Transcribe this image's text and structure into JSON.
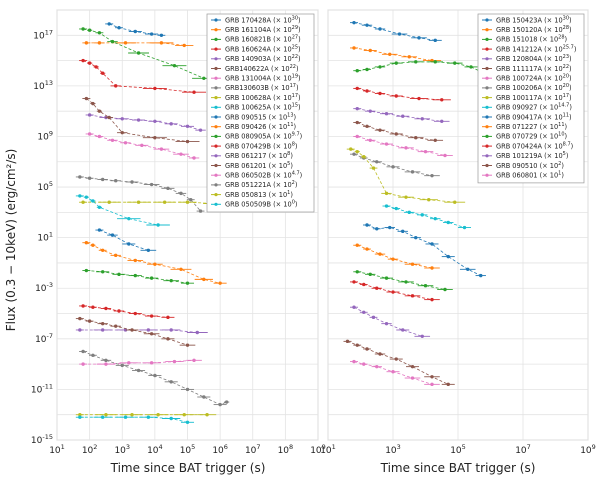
{
  "chart_data": [
    {
      "type": "scatter",
      "panel": "left",
      "xlabel": "Time since BAT trigger (s)",
      "ylabel": "Flux (0.3 − 10keV) (erg/cm²/s)",
      "xscale": "log",
      "yscale": "log",
      "xlim": [
        10,
        1000000000.0
      ],
      "ylim": [
        1e-15,
        1e+19
      ],
      "x_ticks": [
        "10^1",
        "10^2",
        "10^3",
        "10^4",
        "10^5",
        "10^6",
        "10^7",
        "10^8",
        "10^9"
      ],
      "y_ticks": [
        "10^-15",
        "10^-11",
        "10^-7",
        "10^-3",
        "10^1",
        "10^5",
        "10^9",
        "10^13",
        "10^17"
      ],
      "grid": true,
      "legend_position": "top-right",
      "series": [
        {
          "name": "GRB 170428A (× 10^30)",
          "color": "#1f77b4",
          "log_x": [
            2.6,
            2.9,
            3.4,
            3.9,
            4.2
          ],
          "log_y": [
            17.9,
            17.6,
            17.3,
            17.1,
            17.0
          ]
        },
        {
          "name": "GRB 161104A (× 10^29)",
          "color": "#ff7f0e",
          "log_x": [
            1.9,
            2.3,
            3.1,
            4.2,
            4.9
          ],
          "log_y": [
            16.4,
            16.4,
            16.4,
            16.4,
            16.2
          ]
        },
        {
          "name": "GRB 160821B (× 10^27)",
          "color": "#2ca02c",
          "log_x": [
            1.8,
            2.0,
            2.3,
            2.7,
            3.5,
            4.6,
            5.5,
            6.2
          ],
          "log_y": [
            17.5,
            17.4,
            17.2,
            16.5,
            15.6,
            14.6,
            13.6,
            13.5
          ]
        },
        {
          "name": "GRB 160624A (× 10^25)",
          "color": "#d62728",
          "log_x": [
            1.8,
            2.0,
            2.2,
            2.4,
            2.8,
            4.0,
            5.2
          ],
          "log_y": [
            15.0,
            14.8,
            14.5,
            14.0,
            13.0,
            12.8,
            12.5
          ]
        },
        {
          "name": "GRB 140903A (× 10^22)",
          "color": "#9467bd",
          "log_x": [
            2.0,
            2.5,
            3.0,
            3.5,
            4.0,
            4.5,
            5.0,
            5.4
          ],
          "log_y": [
            10.7,
            10.5,
            10.4,
            10.3,
            10.2,
            10.0,
            9.8,
            9.5
          ]
        },
        {
          "name": "GRB140622A (× 10^22)",
          "color": "#8c564b",
          "log_x": [
            1.9,
            2.1,
            2.3,
            2.6,
            3.0,
            4.0,
            5.0
          ],
          "log_y": [
            12.0,
            11.6,
            11.0,
            10.5,
            9.3,
            8.9,
            8.6
          ]
        },
        {
          "name": "GRB 131004A (× 10^19)",
          "color": "#e377c2",
          "log_x": [
            2.0,
            2.3,
            2.7,
            3.1,
            3.6,
            4.2,
            4.8,
            5.2
          ],
          "log_y": [
            9.2,
            9.0,
            8.7,
            8.5,
            8.3,
            8.0,
            7.6,
            7.3
          ]
        },
        {
          "name": "GRB130603B (× 10^17)",
          "color": "#7f7f7f",
          "log_x": [
            1.7,
            2.0,
            2.4,
            2.8,
            3.3,
            3.9,
            4.4,
            4.8,
            5.1,
            5.4
          ],
          "log_y": [
            5.8,
            5.7,
            5.6,
            5.5,
            5.4,
            5.2,
            4.9,
            4.5,
            4.0,
            3.1
          ]
        },
        {
          "name": "GRB 100628A (× 10^17)",
          "color": "#bcbd22",
          "log_x": [
            1.8,
            2.6,
            3.5,
            4.3,
            5.0,
            5.8
          ],
          "log_y": [
            3.8,
            3.8,
            3.8,
            3.8,
            3.8,
            3.7
          ]
        },
        {
          "name": "GRB 100625A (× 10^15)",
          "color": "#17becf",
          "log_x": [
            1.7,
            1.9,
            2.1,
            2.3,
            3.2,
            4.1
          ],
          "log_y": [
            4.3,
            4.2,
            3.9,
            3.4,
            2.5,
            2.0
          ]
        },
        {
          "name": "GRB 090515 (× 10^13)",
          "color": "#1f77b4",
          "log_x": [
            2.3,
            2.7,
            3.2,
            3.8
          ],
          "log_y": [
            1.6,
            1.2,
            0.5,
            0.0
          ]
        },
        {
          "name": "GRB 090426 (× 10^11)",
          "color": "#ff7f0e",
          "log_x": [
            1.9,
            2.1,
            2.4,
            2.8,
            3.4,
            4.0,
            4.8,
            5.5,
            6.0
          ],
          "log_y": [
            0.6,
            0.4,
            0.0,
            -0.4,
            -0.8,
            -1.1,
            -1.5,
            -2.3,
            -2.6
          ]
        },
        {
          "name": "GRB 080905A (× 10^9.7)",
          "color": "#2ca02c",
          "log_x": [
            1.9,
            2.4,
            2.9,
            3.4,
            3.9,
            4.5,
            5.0
          ],
          "log_y": [
            -1.6,
            -1.7,
            -1.9,
            -2.0,
            -2.2,
            -2.4,
            -2.6
          ]
        },
        {
          "name": "GRB 070429B (× 10^8)",
          "color": "#d62728",
          "log_x": [
            1.8,
            2.1,
            2.5,
            2.9,
            3.4,
            3.9,
            4.4
          ],
          "log_y": [
            -4.4,
            -4.5,
            -4.6,
            -4.8,
            -5.0,
            -5.2,
            -5.3
          ]
        },
        {
          "name": "GRB 061217 (× 10^8)",
          "color": "#9467bd",
          "log_x": [
            1.7,
            2.4,
            3.1,
            3.8,
            4.5,
            5.3
          ],
          "log_y": [
            -6.3,
            -6.3,
            -6.3,
            -6.3,
            -6.3,
            -6.5
          ]
        },
        {
          "name": "GRB 061201 (× 10^5)",
          "color": "#8c564b",
          "log_x": [
            1.7,
            2.0,
            2.4,
            2.8,
            3.3,
            3.9,
            4.4,
            5.0
          ],
          "log_y": [
            -5.4,
            -5.6,
            -5.8,
            -6.0,
            -6.3,
            -6.6,
            -7.0,
            -7.5
          ]
        },
        {
          "name": "GRB 060502B (× 10^4.7)",
          "color": "#e377c2",
          "log_x": [
            1.8,
            2.5,
            3.2,
            3.9,
            4.6,
            5.2
          ],
          "log_y": [
            -9.0,
            -9.0,
            -8.9,
            -8.9,
            -8.8,
            -8.7
          ]
        },
        {
          "name": "GRB 051221A (× 10^2)",
          "color": "#7f7f7f",
          "log_x": [
            1.8,
            2.1,
            2.5,
            3.0,
            3.5,
            4.0,
            4.5,
            5.0,
            5.5,
            6.0,
            6.2
          ],
          "log_y": [
            -8.0,
            -8.3,
            -8.7,
            -9.1,
            -9.5,
            -9.9,
            -10.4,
            -11.0,
            -11.6,
            -12.2,
            -12.0
          ]
        },
        {
          "name": "GRB 050813 (× 10^1)",
          "color": "#bcbd22",
          "log_x": [
            1.7,
            2.5,
            3.3,
            4.1,
            4.9,
            5.6
          ],
          "log_y": [
            -13.0,
            -13.0,
            -13.0,
            -13.0,
            -13.0,
            -13.0
          ]
        },
        {
          "name": "GRB 050509B (× 10^0)",
          "color": "#17becf",
          "log_x": [
            1.7,
            2.4,
            3.1,
            3.8,
            4.5,
            5.0
          ],
          "log_y": [
            -13.2,
            -13.2,
            -13.2,
            -13.2,
            -13.3,
            -13.6
          ]
        }
      ]
    },
    {
      "type": "scatter",
      "panel": "right",
      "xlabel": "Time since BAT trigger (s)",
      "xscale": "log",
      "yscale": "log",
      "xlim": [
        10,
        1000000000.0
      ],
      "ylim": [
        1e-15,
        1e+19
      ],
      "x_ticks": [
        "10^1",
        "10^3",
        "10^5",
        "10^7",
        "10^9"
      ],
      "grid": true,
      "legend_position": "top-right",
      "series": [
        {
          "name": "GRB 150423A (× 10^30)",
          "color": "#1f77b4",
          "log_x": [
            1.8,
            2.2,
            2.6,
            3.2,
            3.8,
            4.3
          ],
          "log_y": [
            18.0,
            17.8,
            17.5,
            17.1,
            16.8,
            16.6
          ]
        },
        {
          "name": "GRB 150120A (× 10^28)",
          "color": "#ff7f0e",
          "log_x": [
            1.8,
            2.3,
            2.9,
            3.5,
            4.2
          ],
          "log_y": [
            16.0,
            15.8,
            15.5,
            15.3,
            15.0
          ]
        },
        {
          "name": "GRB 151018 (× 10^28)",
          "color": "#2ca02c",
          "log_x": [
            1.9,
            2.2,
            2.6,
            3.1,
            3.7,
            4.3,
            4.9,
            5.4,
            5.8,
            6.1
          ],
          "log_y": [
            14.2,
            14.3,
            14.5,
            14.8,
            14.9,
            14.9,
            14.8,
            14.5,
            14.0,
            13.5
          ]
        },
        {
          "name": "GRB 141212A (× 10^25.7)",
          "color": "#d62728",
          "log_x": [
            1.9,
            2.2,
            2.6,
            3.1,
            3.8,
            4.5
          ],
          "log_y": [
            12.8,
            12.6,
            12.4,
            12.2,
            12.0,
            11.9
          ]
        },
        {
          "name": "GRB 120804A (× 10^23)",
          "color": "#9467bd",
          "log_x": [
            1.9,
            2.3,
            2.8,
            3.3,
            3.9,
            4.5
          ],
          "log_y": [
            11.2,
            11.0,
            10.8,
            10.6,
            10.4,
            10.2
          ]
        },
        {
          "name": "GRB 111117A (× 10^22)",
          "color": "#8c564b",
          "log_x": [
            1.9,
            2.2,
            2.6,
            3.1,
            3.7,
            4.3
          ],
          "log_y": [
            10.1,
            9.8,
            9.5,
            9.2,
            8.9,
            8.7
          ]
        },
        {
          "name": "GRB 100724A (× 10^20)",
          "color": "#e377c2",
          "log_x": [
            1.9,
            2.3,
            2.8,
            3.4,
            4.0,
            4.6
          ],
          "log_y": [
            9.0,
            8.7,
            8.4,
            8.1,
            7.8,
            7.5
          ]
        },
        {
          "name": "GRB 100206A (× 10^20)",
          "color": "#7f7f7f",
          "log_x": [
            1.8,
            2.1,
            2.5,
            3.0,
            3.6,
            4.2
          ],
          "log_y": [
            7.6,
            7.3,
            7.0,
            6.6,
            6.2,
            5.9
          ]
        },
        {
          "name": "GRB 100117A (× 10^17)",
          "color": "#bcbd22",
          "log_x": [
            1.7,
            1.9,
            2.1,
            2.4,
            2.8,
            3.4,
            4.1,
            4.9
          ],
          "log_y": [
            8.0,
            7.8,
            7.4,
            6.5,
            4.5,
            4.2,
            4.0,
            3.8
          ]
        },
        {
          "name": "GRB 090927 (× 10^14.7)",
          "color": "#17becf",
          "log_x": [
            2.8,
            3.1,
            3.5,
            3.9,
            4.3,
            4.7,
            5.2
          ],
          "log_y": [
            3.5,
            3.3,
            3.0,
            2.8,
            2.5,
            2.2,
            1.8
          ]
        },
        {
          "name": "GRB 090417A (× 10^11)",
          "color": "#1f77b4",
          "log_x": [
            2.2,
            2.5,
            2.9,
            3.3,
            3.7,
            4.2,
            4.7,
            5.3,
            5.7
          ],
          "log_y": [
            2.0,
            1.7,
            1.8,
            1.5,
            1.0,
            0.5,
            -0.5,
            -1.5,
            -2.0
          ]
        },
        {
          "name": "GRB 071227 (× 10^11)",
          "color": "#ff7f0e",
          "log_x": [
            1.9,
            2.2,
            2.6,
            3.0,
            3.6,
            4.2
          ],
          "log_y": [
            0.4,
            0.1,
            -0.3,
            -0.7,
            -1.1,
            -1.4
          ]
        },
        {
          "name": "GRB 070729 (× 10^10)",
          "color": "#2ca02c",
          "log_x": [
            1.9,
            2.3,
            2.8,
            3.4,
            4.0,
            4.6
          ],
          "log_y": [
            -1.7,
            -1.9,
            -2.2,
            -2.5,
            -2.8,
            -3.1
          ]
        },
        {
          "name": "GRB 070424A (× 10^8.7)",
          "color": "#d62728",
          "log_x": [
            1.8,
            2.1,
            2.5,
            3.0,
            3.6,
            4.2
          ],
          "log_y": [
            -2.5,
            -2.7,
            -3.0,
            -3.3,
            -3.6,
            -3.9
          ]
        },
        {
          "name": "GRB 101219A (× 10^5)",
          "color": "#9467bd",
          "log_x": [
            1.8,
            2.1,
            2.4,
            2.8,
            3.3,
            3.9
          ],
          "log_y": [
            -4.5,
            -4.9,
            -5.3,
            -5.8,
            -6.3,
            -6.8
          ]
        },
        {
          "name": "GRB 090510 (× 10^2)",
          "color": "#8c564b",
          "log_x": [
            1.6,
            1.9,
            2.2,
            2.6,
            3.1,
            3.6,
            4.2,
            4.7
          ],
          "log_y": [
            -7.2,
            -7.5,
            -7.8,
            -8.2,
            -8.6,
            -9.2,
            -10.0,
            -10.6
          ]
        },
        {
          "name": "GRB 060801 (× 10^1)",
          "color": "#e377c2",
          "log_x": [
            1.8,
            2.1,
            2.5,
            3.0,
            3.6,
            4.2
          ],
          "log_y": [
            -8.8,
            -9.0,
            -9.2,
            -9.6,
            -10.1,
            -10.6
          ]
        }
      ]
    }
  ]
}
